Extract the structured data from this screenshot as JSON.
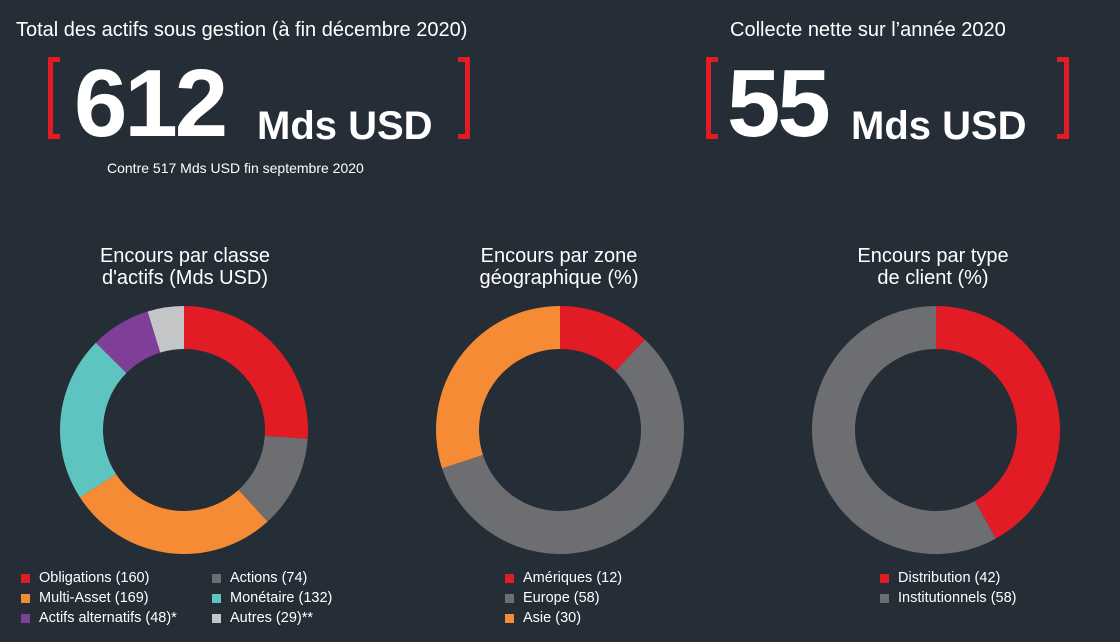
{
  "kpis": {
    "aum": {
      "title": "Total des actifs sous gestion (à fin décembre 2020)",
      "number": "612",
      "unit": "Mds USD",
      "subtitle": "Contre 517 Mds USD fin septembre 2020"
    },
    "netflows": {
      "title": "Collecte nette sur l’année 2020",
      "number": "55",
      "unit": "Mds USD"
    }
  },
  "colors": {
    "accent_red": "#e21c24",
    "background": "#252d36"
  },
  "chart_data": [
    {
      "type": "pie",
      "title": "Encours par classe d'actifs (Mds USD)",
      "title_lines": [
        "Encours par classe",
        "d'actifs (Mds USD)"
      ],
      "categories": [
        "Obligations",
        "Actions",
        "Multi-Asset",
        "Monétaire",
        "Actifs alternatifs",
        "Autres"
      ],
      "values": [
        160,
        74,
        169,
        132,
        48,
        29
      ],
      "colors": [
        "#e21c24",
        "#6d6e71",
        "#f58b35",
        "#5ec4c0",
        "#7f3f98",
        "#c4c5c7"
      ],
      "legend": [
        {
          "label": "Obligations (160)",
          "color": "#e21c24"
        },
        {
          "label": "Actions (74)",
          "color": "#6d6e71"
        },
        {
          "label": "Multi-Asset (169)",
          "color": "#f58b35"
        },
        {
          "label": "Monétaire (132)",
          "color": "#5ec4c0"
        },
        {
          "label": "Actifs alternatifs (48)*",
          "color": "#7f3f98"
        },
        {
          "label": "Autres (29)**",
          "color": "#c4c5c7"
        }
      ],
      "legend_placement": "bottom"
    },
    {
      "type": "pie",
      "title": "Encours par zone géographique (%)",
      "title_lines": [
        "Encours par zone",
        "géographique (%)"
      ],
      "categories": [
        "Amériques",
        "Europe",
        "Asie"
      ],
      "values": [
        12,
        58,
        30
      ],
      "colors": [
        "#e21c24",
        "#6d6e71",
        "#f58b35"
      ],
      "legend": [
        {
          "label": "Amériques (12)",
          "color": "#e21c24"
        },
        {
          "label": "Europe (58)",
          "color": "#6d6e71"
        },
        {
          "label": "Asie (30)",
          "color": "#f58b35"
        }
      ],
      "legend_placement": "bottom"
    },
    {
      "type": "pie",
      "title": "Encours par type de client (%)",
      "title_lines": [
        "Encours par type",
        "de client (%)"
      ],
      "categories": [
        "Distribution",
        "Institutionnels"
      ],
      "values": [
        42,
        58
      ],
      "colors": [
        "#e21c24",
        "#6d6e71"
      ],
      "legend": [
        {
          "label": "Distribution (42)",
          "color": "#e21c24"
        },
        {
          "label": "Institutionnels (58)",
          "color": "#6d6e71"
        }
      ],
      "legend_placement": "bottom"
    }
  ]
}
